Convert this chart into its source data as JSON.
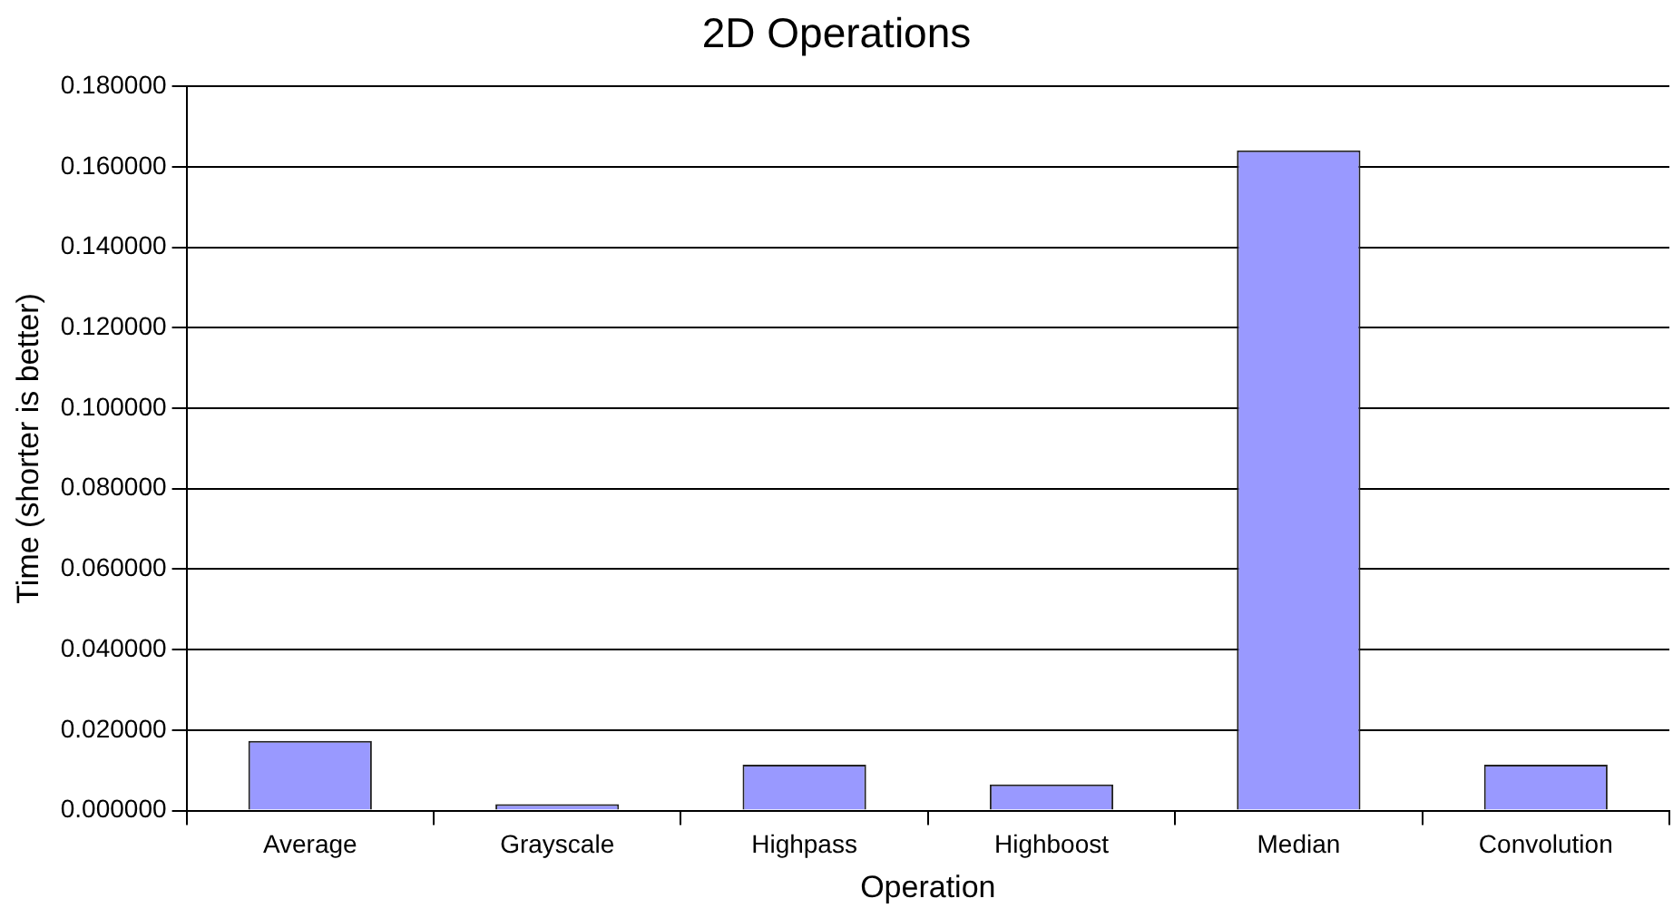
{
  "chart_data": {
    "type": "bar",
    "title": "2D Operations",
    "xlabel": "Operation",
    "ylabel": "Time (shorter is better)",
    "categories": [
      "Average",
      "Grayscale",
      "Highpass",
      "Highboost",
      "Median",
      "Convolution"
    ],
    "values": [
      0.0173,
      0.0016,
      0.0114,
      0.0065,
      0.1641,
      0.0114
    ],
    "color": "#9999ff",
    "ylim": [
      0,
      0.18
    ],
    "yticks": [
      {
        "value": 0,
        "label": "0.000000"
      },
      {
        "value": 0.02,
        "label": "0.020000"
      },
      {
        "value": 0.04,
        "label": "0.040000"
      },
      {
        "value": 0.06,
        "label": "0.060000"
      },
      {
        "value": 0.08,
        "label": "0.080000"
      },
      {
        "value": 0.1,
        "label": "0.100000"
      },
      {
        "value": 0.12,
        "label": "0.120000"
      },
      {
        "value": 0.14,
        "label": "0.140000"
      },
      {
        "value": 0.16,
        "label": "0.160000"
      },
      {
        "value": 0.18,
        "label": "0.180000"
      }
    ],
    "grid": "y",
    "legend": false
  }
}
